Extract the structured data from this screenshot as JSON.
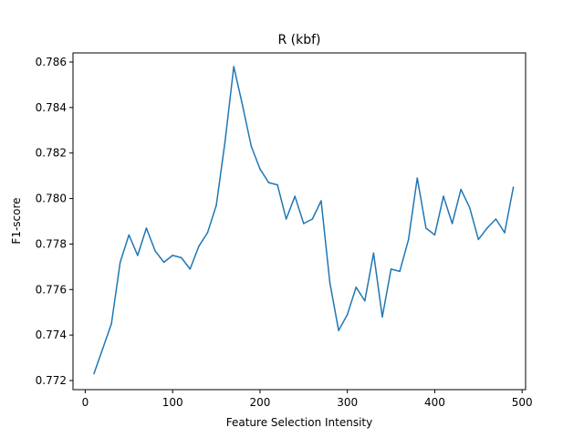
{
  "chart_data": {
    "type": "line",
    "title": "R (kbf)",
    "xlabel": "Feature Selection Intensity",
    "ylabel": "F1-score",
    "xlim": [
      -14,
      504
    ],
    "ylim": [
      0.7716,
      0.7864
    ],
    "xticks": [
      0,
      100,
      200,
      300,
      400,
      500
    ],
    "xtick_labels": [
      "0",
      "100",
      "200",
      "300",
      "400",
      "500"
    ],
    "yticks": [
      0.772,
      0.774,
      0.776,
      0.778,
      0.78,
      0.782,
      0.784,
      0.786
    ],
    "ytick_labels": [
      "0.772",
      "0.774",
      "0.776",
      "0.778",
      "0.780",
      "0.782",
      "0.784",
      "0.786"
    ],
    "grid": false,
    "series": [
      {
        "color": "#1f77b4",
        "x": [
          10,
          20,
          30,
          40,
          50,
          60,
          70,
          80,
          90,
          100,
          110,
          120,
          130,
          140,
          150,
          160,
          170,
          180,
          190,
          200,
          210,
          220,
          230,
          240,
          250,
          260,
          270,
          280,
          290,
          300,
          310,
          320,
          330,
          340,
          350,
          360,
          370,
          380,
          390,
          400,
          410,
          420,
          430,
          440,
          450,
          460,
          470,
          480,
          490
        ],
        "y": [
          0.7723,
          0.7734,
          0.7745,
          0.7772,
          0.7784,
          0.7775,
          0.7787,
          0.7777,
          0.7772,
          0.7775,
          0.7774,
          0.7769,
          0.7779,
          0.7785,
          0.7797,
          0.7825,
          0.7858,
          0.7841,
          0.7823,
          0.7813,
          0.7807,
          0.7806,
          0.7791,
          0.7801,
          0.7789,
          0.7791,
          0.7799,
          0.7763,
          0.7742,
          0.7749,
          0.7761,
          0.7755,
          0.7776,
          0.7748,
          0.7769,
          0.7768,
          0.7782,
          0.7809,
          0.7787,
          0.7784,
          0.7801,
          0.7789,
          0.7804,
          0.7796,
          0.7782,
          0.7787,
          0.7791,
          0.7785,
          0.7805
        ]
      }
    ]
  }
}
